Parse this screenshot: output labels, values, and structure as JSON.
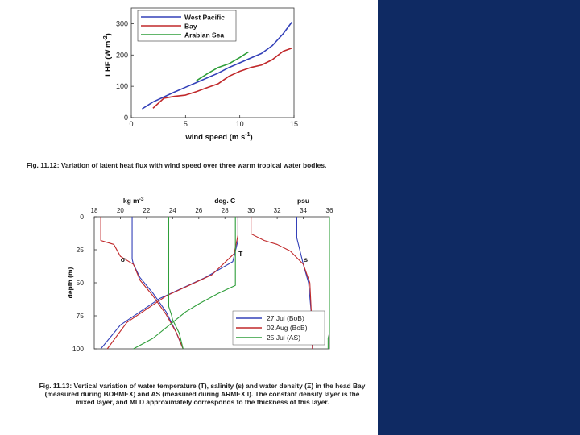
{
  "colors": {
    "accent_panel": "#0f2a63",
    "blue": "#3340b8",
    "red": "#c0282a",
    "green": "#2f9e3a",
    "purple": "#8a4fc8"
  },
  "chart_data": [
    {
      "type": "line",
      "ylabel_parts": [
        "LHF (W m",
        "-2",
        ")"
      ],
      "xlabel_parts": [
        "wind speed (m s",
        "-1",
        ")"
      ],
      "xlim": [
        0,
        15
      ],
      "ylim": [
        0,
        350
      ],
      "xticks": [
        "0",
        "5",
        "10",
        "15"
      ],
      "yticks": [
        "0",
        "100",
        "200",
        "300"
      ],
      "legend": "top-left",
      "series": [
        {
          "name": "West Pacific",
          "color": "#3340b8",
          "points": [
            [
              1,
              28
            ],
            [
              2,
              50
            ],
            [
              3,
              66
            ],
            [
              4,
              82
            ],
            [
              5,
              97
            ],
            [
              6,
              112
            ],
            [
              7,
              127
            ],
            [
              8,
              142
            ],
            [
              9,
              160
            ],
            [
              10,
              175
            ],
            [
              11,
              190
            ],
            [
              12,
              205
            ],
            [
              13,
              230
            ],
            [
              14,
              268
            ],
            [
              14.8,
              305
            ]
          ]
        },
        {
          "name": "Bay",
          "color": "#c0282a",
          "points": [
            [
              2,
              30
            ],
            [
              3,
              62
            ],
            [
              4,
              68
            ],
            [
              5,
              72
            ],
            [
              6,
              83
            ],
            [
              7,
              96
            ],
            [
              8,
              108
            ],
            [
              9,
              132
            ],
            [
              10,
              148
            ],
            [
              11,
              160
            ],
            [
              12,
              168
            ],
            [
              13,
              185
            ],
            [
              14,
              212
            ],
            [
              14.8,
              222
            ]
          ]
        },
        {
          "name": "Arabian Sea",
          "color": "#2f9e3a",
          "points": [
            [
              6,
              118
            ],
            [
              7,
              140
            ],
            [
              8,
              160
            ],
            [
              9,
              172
            ],
            [
              10,
              192
            ],
            [
              10.8,
              210
            ]
          ]
        }
      ]
    },
    {
      "type": "line",
      "ylabel": "depth (m)",
      "ylim": [
        0,
        100
      ],
      "yticks": [
        "0",
        "25",
        "50",
        "75",
        "100"
      ],
      "top_axis_ticks": [
        "18",
        "20",
        "22",
        "24",
        "26",
        "28",
        "30",
        "32",
        "34",
        "36"
      ],
      "top_axis_ticks_range": [
        18,
        36
      ],
      "unit_labels": [
        {
          "parts": [
            "kg m",
            "-3"
          ],
          "at": 21
        },
        {
          "parts": [
            "deg. C"
          ],
          "at": 28
        },
        {
          "parts": [
            "psu"
          ],
          "at": 34
        }
      ],
      "profile_labels": [
        {
          "text": "σ",
          "at": [
            20.2,
            34
          ]
        },
        {
          "text": "T",
          "at": [
            29.2,
            30
          ]
        },
        {
          "text": "s",
          "at": [
            34.2,
            34
          ]
        }
      ],
      "legend": "bottom-right",
      "series": [
        {
          "name": "27 Jul (BoB)",
          "color": "#3340b8",
          "profiles": [
            [
              [
                20.9,
                0
              ],
              [
                20.9,
                32
              ],
              [
                21.0,
                36
              ],
              [
                21.5,
                46
              ],
              [
                22.5,
                58
              ],
              [
                23.5,
                72
              ],
              [
                24.2,
                86
              ],
              [
                24.8,
                100
              ]
            ],
            [
              [
                29.0,
                0
              ],
              [
                29.0,
                18
              ],
              [
                28.6,
                34
              ],
              [
                26.5,
                46
              ],
              [
                23.0,
                62
              ],
              [
                20.0,
                82
              ],
              [
                18.5,
                100
              ]
            ],
            [
              [
                33.5,
                0
              ],
              [
                33.5,
                16
              ],
              [
                34.0,
                36
              ],
              [
                34.4,
                50
              ],
              [
                34.6,
                72
              ],
              [
                34.7,
                100
              ]
            ]
          ]
        },
        {
          "name": "02 Aug (BoB)",
          "color": "#c0282a",
          "profiles": [
            [
              [
                18.5,
                0
              ],
              [
                18.5,
                18
              ],
              [
                19.5,
                21
              ],
              [
                20.0,
                30
              ],
              [
                21.0,
                36
              ],
              [
                21.5,
                48
              ],
              [
                22.5,
                60
              ],
              [
                23.5,
                74
              ],
              [
                24.3,
                88
              ],
              [
                24.8,
                100
              ]
            ],
            [
              [
                29.0,
                0
              ],
              [
                29.0,
                14
              ],
              [
                28.7,
                28
              ],
              [
                27.0,
                44
              ],
              [
                23.5,
                60
              ],
              [
                20.5,
                80
              ],
              [
                19.0,
                100
              ]
            ],
            [
              [
                30.0,
                0
              ],
              [
                30.0,
                13
              ],
              [
                31.0,
                18
              ],
              [
                32.0,
                21
              ],
              [
                33.0,
                26
              ],
              [
                34.0,
                36
              ],
              [
                34.5,
                50
              ],
              [
                34.6,
                70
              ],
              [
                34.7,
                100
              ]
            ]
          ]
        },
        {
          "name": "25 Jul (AS)",
          "color": "#2f9e3a",
          "profiles": [
            [
              [
                23.7,
                0
              ],
              [
                23.7,
                68
              ],
              [
                23.9,
                74
              ],
              [
                24.0,
                78
              ],
              [
                24.5,
                88
              ],
              [
                24.8,
                100
              ]
            ],
            [
              [
                28.8,
                0
              ],
              [
                28.8,
                52
              ],
              [
                27.5,
                58
              ],
              [
                26.0,
                66
              ],
              [
                25.0,
                72
              ],
              [
                24.0,
                80
              ],
              [
                22.5,
                92
              ],
              [
                21.0,
                100
              ]
            ],
            [
              [
                36.0,
                0
              ],
              [
                36.0,
                88
              ],
              [
                35.9,
                92
              ],
              [
                35.9,
                100
              ]
            ]
          ]
        }
      ]
    }
  ],
  "captions": {
    "fig1": "Fig. 11.12: Variation of latent heat flux with wind speed over three warm tropical water bodies.",
    "fig2": "Fig. 11.13: Vertical variation of water temperature (T), salinity (s) and water density (Ξ) in the head Bay (measured during BOBMEX) and AS (measured during ARMEX I). The constant density layer is the mixed layer, and MLD approximately corresponds to the thickness of this layer."
  }
}
